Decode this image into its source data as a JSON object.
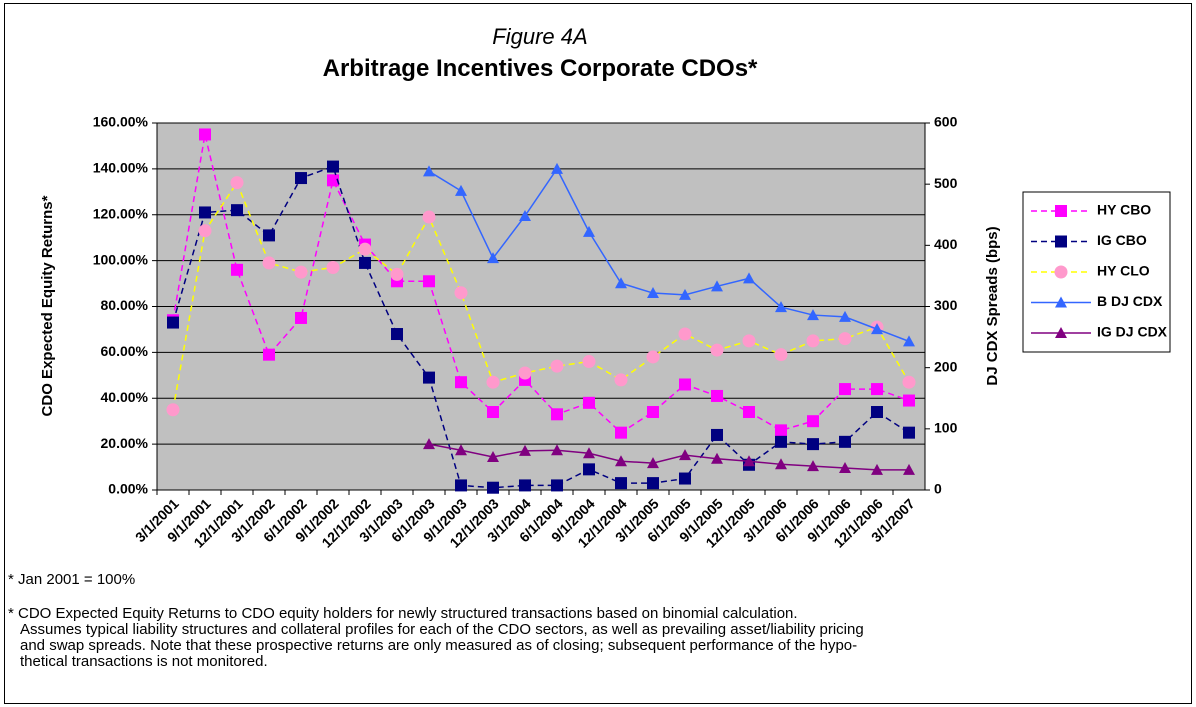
{
  "chart_data": {
    "type": "line",
    "subtitle": "Figure 4A",
    "title": "Arbitrage Incentives Corporate CDOs*",
    "y_label": "CDO Expected Equity Returns*",
    "y2_label": "DJ CDX Spreads (bps)",
    "footnote": "* Jan 2001 = 100%",
    "note": [
      "* CDO Expected Equity Returns to CDO equity holders for newly structured transactions based on binomial calculation.",
      "Assumes typical liability structures and collateral profiles for each of the CDO sectors, as well as prevailing asset/liability pricing",
      "and swap spreads. Note that these prospective returns are only measured as of closing; subsequent performance of the hypo-",
      "thetical transactions is not monitored."
    ],
    "categories": [
      "3/1/2001",
      "9/1/2001",
      "12/1/2001",
      "3/1/2002",
      "6/1/2002",
      "9/1/2002",
      "12/1/2002",
      "3/1/2003",
      "6/1/2003",
      "9/1/2003",
      "12/1/2003",
      "3/1/2004",
      "6/1/2004",
      "9/1/2004",
      "12/1/2004",
      "3/1/2005",
      "6/1/2005",
      "9/1/2005",
      "12/1/2005",
      "3/1/2006",
      "6/1/2006",
      "9/1/2006",
      "12/1/2006",
      "3/1/2007"
    ],
    "ylim": [
      0,
      160
    ],
    "yticks": [
      {
        "value": 0,
        "label": "0.00%"
      },
      {
        "value": 20,
        "label": "20.00%"
      },
      {
        "value": 40,
        "label": "40.00%"
      },
      {
        "value": 60,
        "label": "60.00%"
      },
      {
        "value": 80,
        "label": "80.00%"
      },
      {
        "value": 100,
        "label": "100.00%"
      },
      {
        "value": 120,
        "label": "120.00%"
      },
      {
        "value": 140,
        "label": "140.00%"
      },
      {
        "value": 160,
        "label": "160.00%"
      }
    ],
    "y2lim": [
      0,
      600
    ],
    "y2ticks": [
      0,
      100,
      200,
      300,
      400,
      500,
      600
    ],
    "grid": true,
    "background": "#c0c0c0",
    "legend": "right",
    "series": [
      {
        "name": "HY CBO",
        "color": "#ff00ff",
        "marker_color": "#ff00ff",
        "marker": "square",
        "dashed": true,
        "values": [
          74,
          155,
          96,
          59,
          75,
          135,
          107,
          91,
          91,
          47,
          34,
          48,
          33,
          38,
          25,
          34,
          46,
          41,
          34,
          26,
          30,
          44,
          44,
          39
        ]
      },
      {
        "name": "IG CBO",
        "color": "#000080",
        "marker_color": "#000080",
        "marker": "square",
        "dashed": true,
        "values": [
          73,
          121,
          122,
          111,
          136,
          141,
          99,
          68,
          49,
          2,
          1,
          2,
          2,
          9,
          3,
          3,
          5,
          24,
          11,
          21,
          20,
          21,
          34,
          25
        ]
      },
      {
        "name": "HY CLO",
        "color": "#ffff00",
        "marker_color": "#ff99cc",
        "marker": "circle",
        "dashed": true,
        "values": [
          35,
          113,
          134,
          99,
          95,
          97,
          105,
          94,
          119,
          86,
          47,
          51,
          54,
          56,
          48,
          58,
          68,
          61,
          65,
          59,
          65,
          66,
          71,
          47
        ]
      },
      {
        "name": "B DJ CDX",
        "color": "#3366ff",
        "marker_color": "#3366ff",
        "marker": "triangle",
        "dashed": false,
        "axis": "y2",
        "values": [
          null,
          null,
          null,
          null,
          null,
          null,
          null,
          null,
          521,
          489,
          379,
          448,
          525,
          422,
          338,
          322,
          319,
          333,
          346,
          299,
          286,
          283,
          263,
          243
        ]
      },
      {
        "name": "IG DJ CDX",
        "color": "#800080",
        "marker_color": "#800080",
        "marker": "triangle",
        "dashed": false,
        "axis": "y2",
        "values": [
          null,
          null,
          null,
          null,
          null,
          null,
          null,
          null,
          75,
          65,
          54,
          64,
          65,
          60,
          47,
          44,
          57,
          51,
          47,
          42,
          39,
          36,
          33,
          33
        ]
      }
    ]
  }
}
